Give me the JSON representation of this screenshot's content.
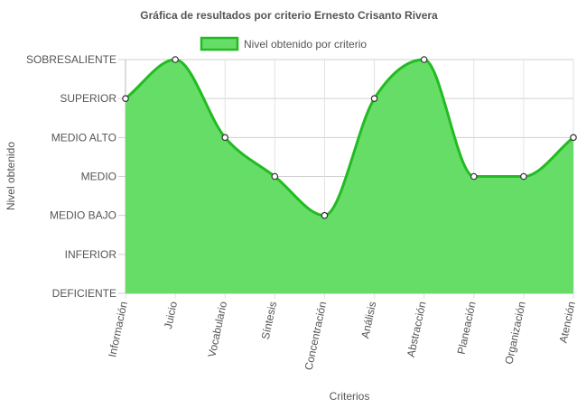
{
  "chart_data": {
    "type": "area",
    "title": "Gráfica de resultados por criterio Ernesto Crisanto Rivera",
    "xlabel": "Criterios",
    "ylabel": "Nivel obtenido",
    "categories": [
      "Información",
      "Juicio",
      "Vocabulario",
      "Síntesis",
      "Concentración",
      "Análisis",
      "Abstracción",
      "Planeación",
      "Organización",
      "Atención"
    ],
    "y_levels": [
      "DEFICIENTE",
      "INFERIOR",
      "MEDIO BAJO",
      "MEDIO",
      "MEDIO ALTO",
      "SUPERIOR",
      "SOBRESALIENTE"
    ],
    "series": [
      {
        "name": "Nivel obtenido por criterio",
        "values": [
          "SUPERIOR",
          "SOBRESALIENTE",
          "MEDIO ALTO",
          "MEDIO",
          "MEDIO BAJO",
          "SUPERIOR",
          "SOBRESALIENTE",
          "MEDIO",
          "MEDIO",
          "MEDIO ALTO"
        ],
        "fill_color": "#66dd66",
        "line_color": "#22bb22"
      }
    ],
    "grid": true,
    "legend": "top-center"
  }
}
